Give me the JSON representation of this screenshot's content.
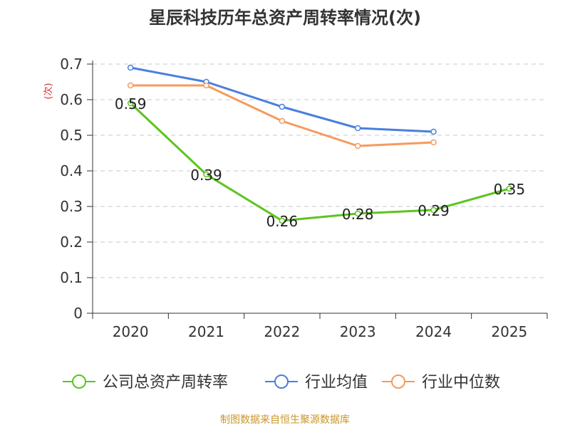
{
  "chart_data": {
    "type": "line",
    "title": "星辰科技历年总资产周转率情况(次)",
    "ylabel": "(次)",
    "xlabel": "",
    "categories": [
      "2020",
      "2021",
      "2022",
      "2023",
      "2024",
      "2025"
    ],
    "ylim": [
      0,
      0.7
    ],
    "yticks": [
      "0",
      "0.1",
      "0.2",
      "0.3",
      "0.4",
      "0.5",
      "0.6",
      "0.7"
    ],
    "grid": true,
    "legend_position": "bottom",
    "series": [
      {
        "name": "公司总资产周转率",
        "color": "#5cc41f",
        "values": [
          0.59,
          0.39,
          0.26,
          0.28,
          0.29,
          0.35
        ],
        "labels": [
          "0.59",
          "0.39",
          "0.26",
          "0.28",
          "0.29",
          "0.35"
        ]
      },
      {
        "name": "行业均值",
        "color": "#4a7fdc",
        "values": [
          0.69,
          0.65,
          0.58,
          0.52,
          0.51,
          null
        ]
      },
      {
        "name": "行业中位数",
        "color": "#f59a5e",
        "values": [
          0.64,
          0.64,
          0.54,
          0.47,
          0.48,
          null
        ]
      }
    ],
    "source": "制图数据来自恒生聚源数据库"
  }
}
